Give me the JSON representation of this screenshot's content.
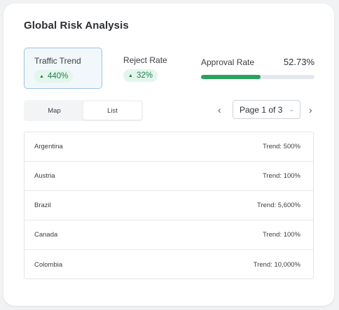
{
  "title": "Global Risk Analysis",
  "metrics": {
    "traffic": {
      "label": "Traffic Trend",
      "change": "440%"
    },
    "reject": {
      "label": "Reject Rate",
      "change": "32%"
    },
    "approval": {
      "label": "Approval Rate",
      "value": "52.73%",
      "fill_percent": 52.73
    }
  },
  "view_toggle": {
    "map_label": "Map",
    "list_label": "List",
    "selected": "List"
  },
  "pager": {
    "label": "Page 1 of 3",
    "prev": "‹",
    "next": "›",
    "chevron": "⌄"
  },
  "countries": [
    {
      "name": "Argentina",
      "trend": "Trend: 500%"
    },
    {
      "name": "Austria",
      "trend": "Trend: 100%"
    },
    {
      "name": "Brazil",
      "trend": "Trend: 5,600%"
    },
    {
      "name": "Canada",
      "trend": "Trend: 100%"
    },
    {
      "name": "Colombia",
      "trend": "Trend: 10,000%"
    }
  ],
  "colors": {
    "accent_green": "#27a35a",
    "badge_bg": "#e4f6ec",
    "selected_border": "#9cc3e6"
  }
}
